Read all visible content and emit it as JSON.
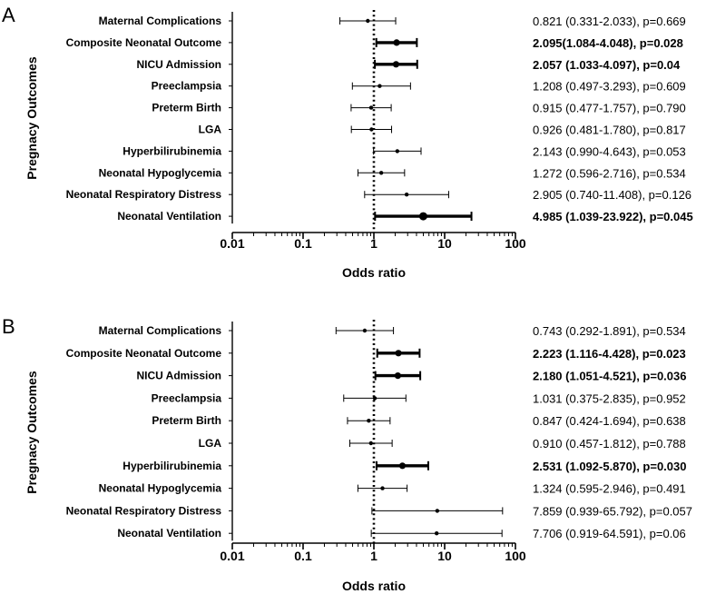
{
  "chart_data": [
    {
      "type": "forest",
      "panel_label": "A",
      "ylabel": "Pregnacy Outcomes",
      "xlabel": "Odds ratio",
      "xscale": "log",
      "xlim": [
        0.01,
        100
      ],
      "xticks": [
        "0.01",
        "0.1",
        "1",
        "10",
        "100"
      ],
      "reference_line": 1,
      "rows": [
        {
          "label": "Maternal Complications",
          "or": 0.821,
          "lo": 0.331,
          "hi": 2.033,
          "text": "0.821 (0.331-2.033), p=0.669",
          "significant": false
        },
        {
          "label": "Composite Neonatal Outcome",
          "or": 2.095,
          "lo": 1.084,
          "hi": 4.048,
          "text": "2.095(1.084-4.048), p=0.028",
          "significant": true
        },
        {
          "label": "NICU Admission",
          "or": 2.057,
          "lo": 1.033,
          "hi": 4.097,
          "text": "2.057 (1.033-4.097), p=0.04",
          "significant": true
        },
        {
          "label": "Preeclampsia",
          "or": 1.208,
          "lo": 0.497,
          "hi": 3.293,
          "text": "1.208 (0.497-3.293), p=0.609",
          "significant": false
        },
        {
          "label": "Preterm Birth",
          "or": 0.915,
          "lo": 0.477,
          "hi": 1.757,
          "text": "0.915 (0.477-1.757), p=0.790",
          "significant": false
        },
        {
          "label": "LGA",
          "or": 0.926,
          "lo": 0.481,
          "hi": 1.78,
          "text": "0.926 (0.481-1.780), p=0.817",
          "significant": false
        },
        {
          "label": "Hyperbilirubinemia",
          "or": 2.143,
          "lo": 0.99,
          "hi": 4.643,
          "text": "2.143 (0.990-4.643), p=0.053",
          "significant": false
        },
        {
          "label": "Neonatal Hypoglycemia",
          "or": 1.272,
          "lo": 0.596,
          "hi": 2.716,
          "text": "1.272 (0.596-2.716), p=0.534",
          "significant": false
        },
        {
          "label": "Neonatal Respiratory Distress",
          "or": 2.905,
          "lo": 0.74,
          "hi": 11.408,
          "text": "2.905 (0.740-11.408), p=0.126",
          "significant": false
        },
        {
          "label": "Neonatal Ventilation",
          "or": 4.985,
          "lo": 1.039,
          "hi": 23.922,
          "text": "4.985 (1.039-23.922), p=0.045",
          "significant": true
        }
      ]
    },
    {
      "type": "forest",
      "panel_label": "B",
      "ylabel": "Pregnacy Outcomes",
      "xlabel": "Odds ratio",
      "xscale": "log",
      "xlim": [
        0.01,
        100
      ],
      "xticks": [
        "0.01",
        "0.1",
        "1",
        "10",
        "100"
      ],
      "reference_line": 1,
      "rows": [
        {
          "label": "Maternal Complications",
          "or": 0.743,
          "lo": 0.292,
          "hi": 1.891,
          "text": "0.743 (0.292-1.891), p=0.534",
          "significant": false
        },
        {
          "label": "Composite Neonatal Outcome",
          "or": 2.223,
          "lo": 1.116,
          "hi": 4.428,
          "text": "2.223 (1.116-4.428), p=0.023",
          "significant": true
        },
        {
          "label": "NICU Admission",
          "or": 2.18,
          "lo": 1.051,
          "hi": 4.521,
          "text": "2.180 (1.051-4.521), p=0.036",
          "significant": true
        },
        {
          "label": "Preeclampsia",
          "or": 1.031,
          "lo": 0.375,
          "hi": 2.835,
          "text": "1.031 (0.375-2.835), p=0.952",
          "significant": false
        },
        {
          "label": "Preterm Birth",
          "or": 0.847,
          "lo": 0.424,
          "hi": 1.694,
          "text": "0.847 (0.424-1.694), p=0.638",
          "significant": false
        },
        {
          "label": "LGA",
          "or": 0.91,
          "lo": 0.457,
          "hi": 1.812,
          "text": "0.910 (0.457-1.812), p=0.788",
          "significant": false
        },
        {
          "label": "Hyperbilirubinemia",
          "or": 2.531,
          "lo": 1.092,
          "hi": 5.87,
          "text": "2.531 (1.092-5.870), p=0.030",
          "significant": true
        },
        {
          "label": "Neonatal Hypoglycemia",
          "or": 1.324,
          "lo": 0.595,
          "hi": 2.946,
          "text": "1.324 (0.595-2.946), p=0.491",
          "significant": false
        },
        {
          "label": "Neonatal Respiratory Distress",
          "or": 7.859,
          "lo": 0.939,
          "hi": 65.792,
          "text": "7.859 (0.939-65.792), p=0.057",
          "significant": false
        },
        {
          "label": "Neonatal Ventilation",
          "or": 7.706,
          "lo": 0.919,
          "hi": 64.591,
          "text": "7.706 (0.919-64.591), p=0.06",
          "significant": false
        }
      ]
    }
  ]
}
